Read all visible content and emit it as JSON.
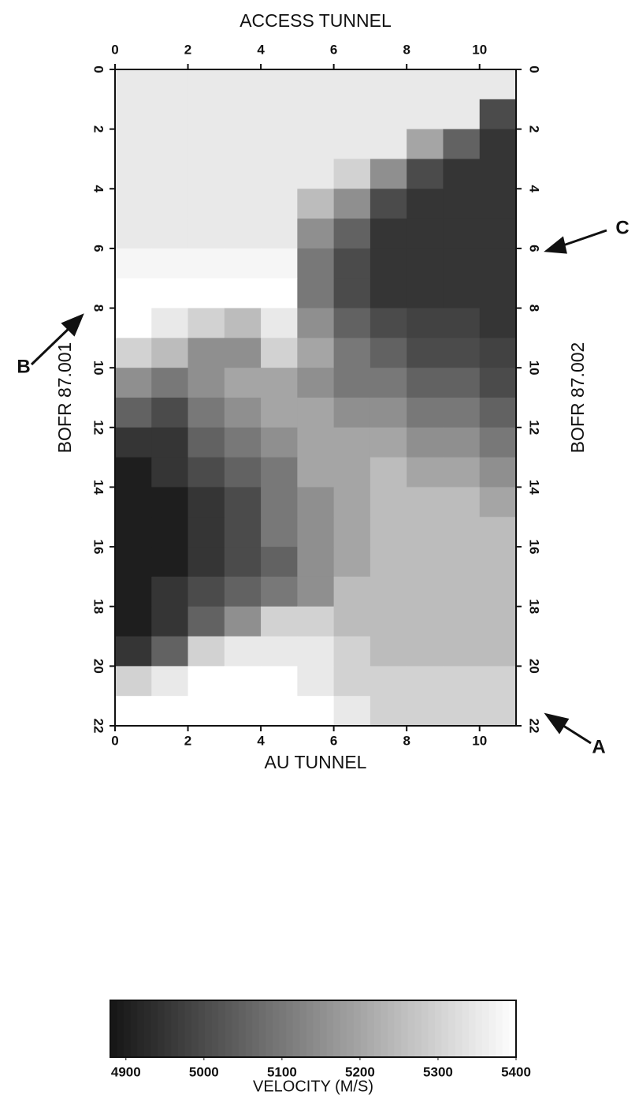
{
  "chart_data": {
    "type": "heatmap",
    "xlabel_top": "ACCESS TUNNEL",
    "xlabel": "AU TUNNEL",
    "ylabel": "BOFR 87.001",
    "ylabel_right": "BOFR 87.002",
    "xbins": [
      0,
      1,
      2,
      3,
      4,
      5,
      6,
      7,
      8,
      9,
      10,
      11
    ],
    "ybins": [
      0,
      1,
      2,
      3,
      4,
      5,
      6,
      7,
      8,
      9,
      10,
      11,
      12,
      13,
      14,
      15,
      16,
      17,
      18,
      19,
      20,
      21,
      22
    ],
    "xlim": [
      0,
      11
    ],
    "ylim": [
      22,
      0
    ],
    "xticks": [
      0,
      2,
      4,
      6,
      8,
      10
    ],
    "yticks": [
      0,
      2,
      4,
      6,
      8,
      10,
      12,
      14,
      16,
      18,
      20,
      22
    ],
    "values": [
      [
        5350,
        5350,
        5350,
        5350,
        5350,
        5350,
        5350,
        5350,
        5350,
        5350,
        5350
      ],
      [
        5350,
        5350,
        5350,
        5350,
        5350,
        5350,
        5350,
        5350,
        5350,
        5350,
        5000
      ],
      [
        5350,
        5350,
        5350,
        5350,
        5350,
        5350,
        5350,
        5350,
        5200,
        5050,
        4950
      ],
      [
        5350,
        5350,
        5350,
        5350,
        5350,
        5350,
        5300,
        5150,
        5000,
        4950,
        4950
      ],
      [
        5350,
        5350,
        5350,
        5350,
        5350,
        5250,
        5150,
        5000,
        4950,
        4950,
        4950
      ],
      [
        5350,
        5350,
        5350,
        5350,
        5350,
        5150,
        5050,
        4950,
        4950,
        4950,
        4950
      ],
      [
        5380,
        5380,
        5380,
        5380,
        5380,
        5100,
        5000,
        4950,
        4950,
        4950,
        4950
      ],
      [
        5400,
        5400,
        5400,
        5400,
        5400,
        5100,
        5000,
        4950,
        4950,
        4950,
        4950
      ],
      [
        5400,
        5350,
        5300,
        5250,
        5350,
        5150,
        5050,
        5000,
        4980,
        4980,
        4950
      ],
      [
        5300,
        5250,
        5150,
        5150,
        5300,
        5200,
        5100,
        5050,
        5000,
        5000,
        4980
      ],
      [
        5150,
        5100,
        5150,
        5200,
        5200,
        5150,
        5100,
        5100,
        5050,
        5050,
        5000
      ],
      [
        5050,
        5000,
        5100,
        5150,
        5200,
        5200,
        5150,
        5150,
        5100,
        5100,
        5050
      ],
      [
        4950,
        4950,
        5050,
        5100,
        5150,
        5200,
        5200,
        5200,
        5150,
        5150,
        5100
      ],
      [
        4900,
        4950,
        5000,
        5050,
        5100,
        5200,
        5200,
        5250,
        5200,
        5200,
        5150
      ],
      [
        4900,
        4900,
        4950,
        5000,
        5100,
        5150,
        5200,
        5250,
        5250,
        5250,
        5200
      ],
      [
        4900,
        4900,
        4950,
        5000,
        5100,
        5150,
        5200,
        5250,
        5250,
        5250,
        5250
      ],
      [
        4900,
        4900,
        4950,
        5000,
        5050,
        5150,
        5200,
        5250,
        5250,
        5250,
        5250
      ],
      [
        4900,
        4950,
        5000,
        5050,
        5100,
        5150,
        5250,
        5250,
        5250,
        5250,
        5250
      ],
      [
        4900,
        4950,
        5050,
        5150,
        5300,
        5300,
        5250,
        5250,
        5250,
        5250,
        5250
      ],
      [
        4950,
        5050,
        5300,
        5350,
        5350,
        5350,
        5300,
        5250,
        5250,
        5250,
        5250
      ],
      [
        5300,
        5350,
        5400,
        5400,
        5400,
        5350,
        5300,
        5300,
        5300,
        5300,
        5300
      ],
      [
        5400,
        5400,
        5400,
        5400,
        5400,
        5400,
        5350,
        5300,
        5300,
        5300,
        5300
      ]
    ],
    "colormap": [
      "#151515",
      "#ffffff"
    ],
    "clim": [
      4880,
      5400
    ],
    "cticks": [
      4900,
      5000,
      5100,
      5200,
      5300,
      5400
    ],
    "clabel": "VELOCITY (M/S)",
    "annotations": [
      "A",
      "B",
      "C"
    ]
  }
}
